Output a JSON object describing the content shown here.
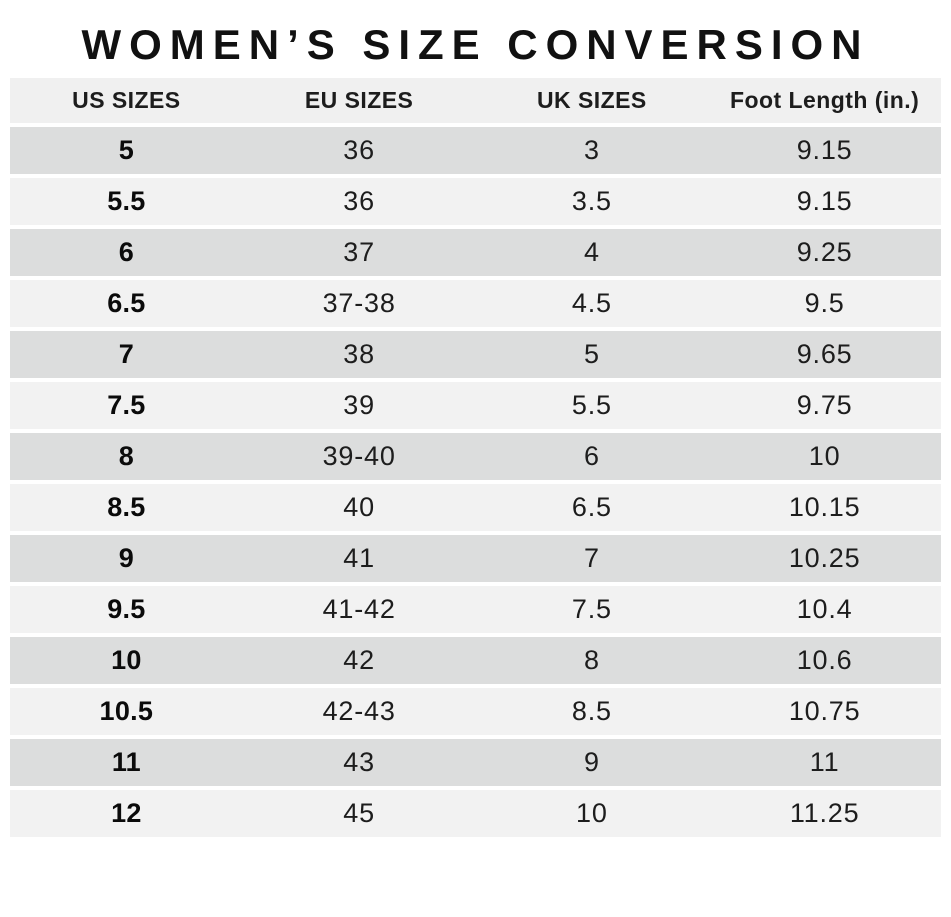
{
  "chart_data": {
    "type": "table",
    "title": "WOMEN’S SIZE CONVERSION",
    "columns": [
      "US SIZES",
      "EU SIZES",
      "UK SIZES",
      "Foot Length (in.)"
    ],
    "rows": [
      [
        "5",
        "36",
        "3",
        "9.15"
      ],
      [
        "5.5",
        "36",
        "3.5",
        "9.15"
      ],
      [
        "6",
        "37",
        "4",
        "9.25"
      ],
      [
        "6.5",
        "37-38",
        "4.5",
        "9.5"
      ],
      [
        "7",
        "38",
        "5",
        "9.65"
      ],
      [
        "7.5",
        "39",
        "5.5",
        "9.75"
      ],
      [
        "8",
        "39-40",
        "6",
        "10"
      ],
      [
        "8.5",
        "40",
        "6.5",
        "10.15"
      ],
      [
        "9",
        "41",
        "7",
        "10.25"
      ],
      [
        "9.5",
        "41-42",
        "7.5",
        "10.4"
      ],
      [
        "10",
        "42",
        "8",
        "10.6"
      ],
      [
        "10.5",
        "42-43",
        "8.5",
        "10.75"
      ],
      [
        "11",
        "43",
        "9",
        "11"
      ],
      [
        "12",
        "45",
        "10",
        "11.25"
      ]
    ]
  },
  "colors": {
    "row-dark": "#dcdddd",
    "row-light": "#f2f2f2",
    "header-bg": "#f0f0f0",
    "text": "#1d1d1d",
    "title-color": "#111111",
    "page-bg": "#ffffff"
  }
}
